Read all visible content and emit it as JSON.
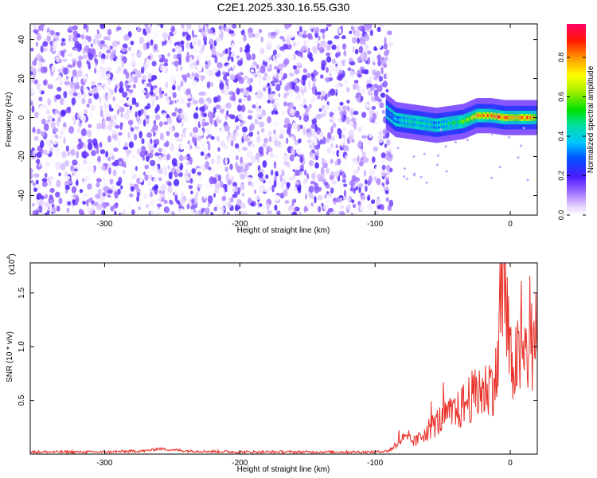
{
  "figure": {
    "title": "C2E1.2025.330.16.55.G30"
  },
  "chart_data": [
    {
      "type": "heatmap",
      "xlabel": "Height of straight line (km)",
      "ylabel": "Frequency (Hz)",
      "xlim": [
        -355,
        20
      ],
      "ylim": [
        -50,
        48
      ],
      "x_ticks": [
        -300,
        -200,
        -100,
        0
      ],
      "y_ticks": [
        -40,
        -20,
        0,
        20,
        40
      ],
      "colorbar": {
        "label": "Normalized spectral amplitude",
        "range": [
          0,
          0.97
        ],
        "ticks": [
          "0.0",
          "0.2",
          "0.4",
          "0.6",
          "0.8"
        ],
        "tick_values": [
          0.0,
          0.2,
          0.4,
          0.6,
          0.8
        ]
      },
      "noise_region": {
        "x_range": [
          -355,
          -88
        ],
        "amplitude_range": [
          0.0,
          0.2
        ]
      },
      "signal_ridge": {
        "x": [
          -92,
          -85,
          -75,
          -65,
          -55,
          -45,
          -35,
          -25,
          -15,
          -5,
          5,
          15,
          20
        ],
        "frequency": [
          3,
          -1,
          -2,
          -3,
          -4,
          -3,
          -2,
          1,
          1,
          0,
          0,
          0,
          0
        ],
        "peak_amplitude": [
          0.3,
          0.4,
          0.5,
          0.5,
          0.45,
          0.5,
          0.6,
          0.8,
          0.9,
          0.95,
          0.8,
          0.95,
          0.6
        ]
      }
    },
    {
      "type": "line",
      "xlabel": "Height of straight line (km)",
      "ylabel": "SNR (10 * v/v)",
      "y_multiplier": "(x10",
      "y_multiplier_exp": "4",
      "y_multiplier_close": ")",
      "xlim": [
        -355,
        20
      ],
      "ylim": [
        0,
        1.78
      ],
      "x_ticks": [
        -300,
        -200,
        -100,
        0
      ],
      "y_ticks": [
        0.5,
        1.0,
        1.5
      ],
      "color": "#e8322a",
      "series": [
        {
          "x": [
            -355,
            -300,
            -270,
            -260,
            -240,
            -200,
            -150,
            -100,
            -90,
            -80,
            -70,
            -60,
            -50,
            -40,
            -30,
            -20,
            -10,
            -5,
            0,
            10,
            20
          ],
          "y": [
            0.02,
            0.02,
            0.03,
            0.05,
            0.03,
            0.02,
            0.02,
            0.02,
            0.03,
            0.15,
            0.12,
            0.25,
            0.35,
            0.4,
            0.55,
            0.6,
            0.75,
            1.75,
            0.85,
            0.95,
            1.12
          ]
        }
      ]
    }
  ]
}
